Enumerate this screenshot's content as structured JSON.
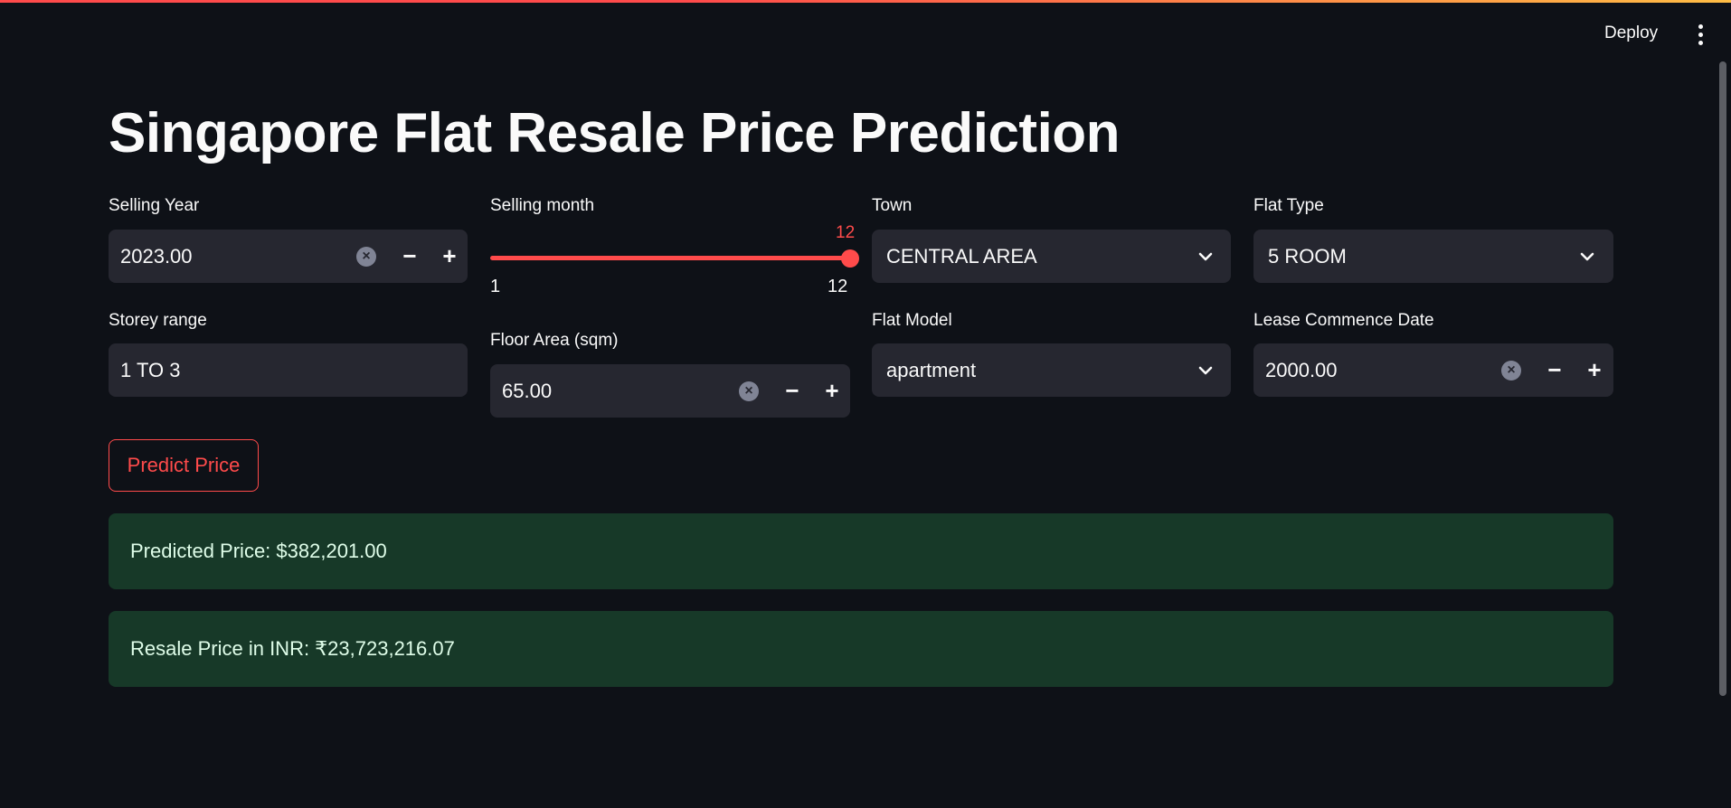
{
  "app": {
    "title": "Singapore Flat Resale Price Prediction",
    "deploy_label": "Deploy",
    "menu_icon": "vertical-dots-icon"
  },
  "colors": {
    "background": "#0e1117",
    "widget_bg": "#262730",
    "accent": "#ff4b4b",
    "success_bg": "#173928",
    "success_text": "#dffde9"
  },
  "selling_year": {
    "label": "Selling Year",
    "value": "2023.00",
    "minus": "−",
    "plus": "+",
    "clear_icon": "×"
  },
  "selling_month": {
    "label": "Selling month",
    "value": "12",
    "min_label": "1",
    "max_label": "12",
    "min": 1,
    "max": 12,
    "current": 12
  },
  "town": {
    "label": "Town",
    "value": "CENTRAL AREA"
  },
  "flat_type": {
    "label": "Flat Type",
    "value": "5 ROOM"
  },
  "storey_range": {
    "label": "Storey range",
    "value": "1 TO 3"
  },
  "floor_area": {
    "label": "Floor Area (sqm)",
    "value": "65.00",
    "minus": "−",
    "plus": "+",
    "clear_icon": "×"
  },
  "flat_model": {
    "label": "Flat Model",
    "value": "apartment"
  },
  "lease_commence_date": {
    "label": "Lease Commence Date",
    "value": "2000.00",
    "minus": "−",
    "plus": "+",
    "clear_icon": "×"
  },
  "predict_button": {
    "label": "Predict Price"
  },
  "results": {
    "predicted_price": "Predicted Price: $382,201.00",
    "resale_price_inr": "Resale Price in INR: ₹23,723,216.07"
  }
}
